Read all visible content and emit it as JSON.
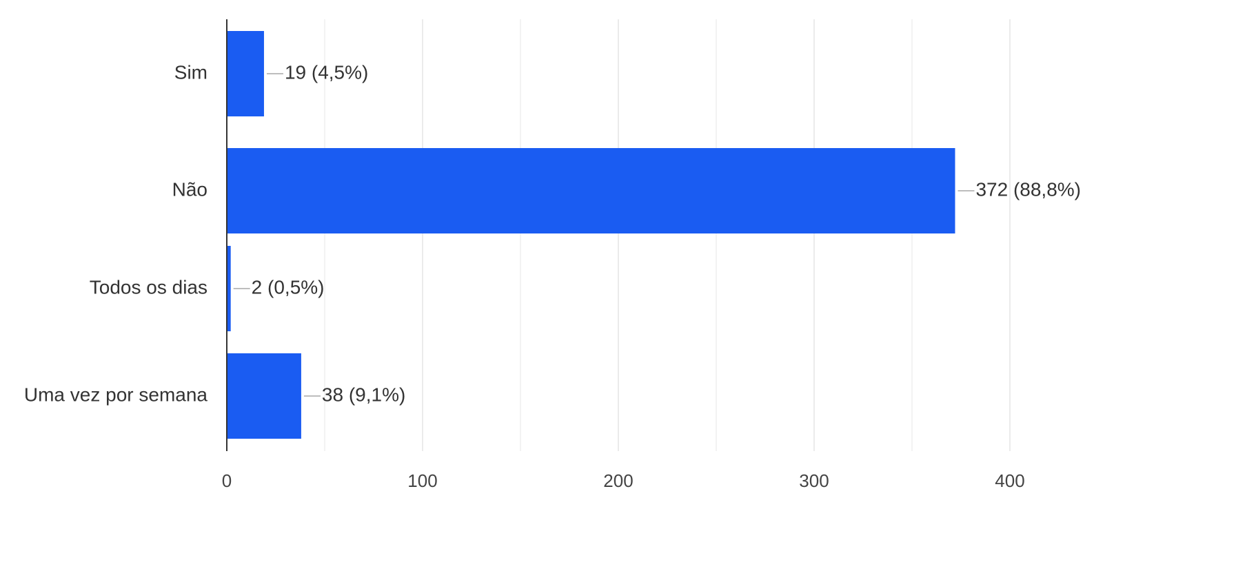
{
  "chart_data": {
    "type": "bar",
    "orientation": "horizontal",
    "categories": [
      "Sim",
      "Não",
      "Todos os dias",
      "Uma vez por semana"
    ],
    "values": [
      19,
      372,
      2,
      38
    ],
    "data_labels": [
      "19 (4,5%)",
      "372 (88,8%)",
      "2 (0,5%)",
      "38 (9,1%)"
    ],
    "x_ticks": [
      "0",
      "100",
      "200",
      "300",
      "400"
    ],
    "xlim": [
      0,
      400
    ],
    "bar_color": "#1a5cf2",
    "grid": true,
    "title": "",
    "xlabel": "",
    "ylabel": ""
  }
}
